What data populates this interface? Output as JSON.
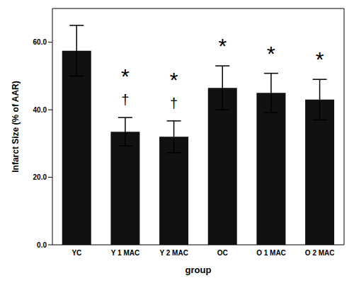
{
  "chart_data": {
    "type": "bar",
    "x_label": "group",
    "y_label": "Infarct Size (% of AAR)",
    "categories": [
      "YC",
      "Y 1 MAC",
      "Y 2 MAC",
      "OC",
      "O 1 MAC",
      "O 2 MAC"
    ],
    "values": [
      57.5,
      33.5,
      32.0,
      46.5,
      45.0,
      43.0
    ],
    "errors": [
      7.5,
      4.2,
      4.7,
      6.5,
      5.8,
      6.0
    ],
    "annotations": [
      [],
      [
        "*",
        "†"
      ],
      [
        "*",
        "†"
      ],
      [
        "*"
      ],
      [
        "*"
      ],
      [
        "*"
      ]
    ],
    "color": "#111111",
    "ylim": [
      0,
      70
    ],
    "yticks": [
      {
        "value": 0,
        "label": "0.0"
      },
      {
        "value": 20,
        "label": "20.0"
      },
      {
        "value": 40,
        "label": "40.0"
      },
      {
        "value": 60,
        "label": "60.0"
      }
    ],
    "grid": false
  }
}
